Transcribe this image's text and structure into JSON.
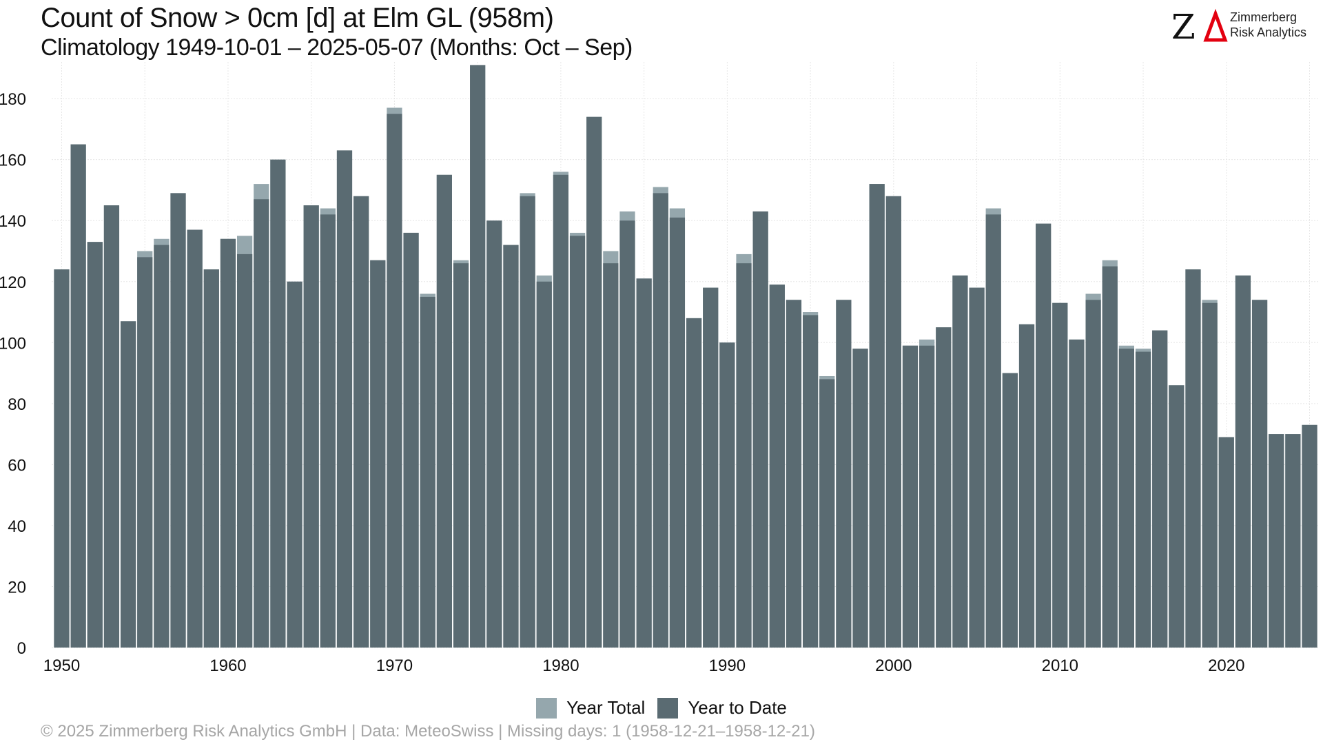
{
  "header": {
    "title": "Count of Snow > 0cm [d] at Elm  GL (958m)",
    "subtitle": "Climatology 1949-10-01 – 2025-05-07 (Months: Oct – Sep)"
  },
  "logo": {
    "mark": "ZΔ",
    "line1": "Zimmerberg",
    "line2": "Risk Analytics",
    "accent_color": "#e3000f"
  },
  "legend": {
    "total_label": "Year Total",
    "ytd_label": "Year to Date"
  },
  "footer": "©  2025 Zimmerberg Risk Analytics GmbH | Data: MeteoSwiss | Missing days: 1 (1958-12-21–1958-12-21)",
  "colors": {
    "total": "#95a7ad",
    "ytd": "#5a6b72",
    "grid": "#e6e6e6"
  },
  "chart_data": {
    "type": "bar",
    "xlabel": "",
    "ylabel": "",
    "ylim": [
      0,
      192
    ],
    "yticks": [
      0,
      20,
      40,
      60,
      80,
      100,
      120,
      140,
      160,
      180
    ],
    "xticks": [
      1950,
      1960,
      1970,
      1980,
      1990,
      2000,
      2010,
      2020
    ],
    "grid": true,
    "legend_position": "bottom",
    "x": [
      1950,
      1951,
      1952,
      1953,
      1954,
      1955,
      1956,
      1957,
      1958,
      1959,
      1960,
      1961,
      1962,
      1963,
      1964,
      1965,
      1966,
      1967,
      1968,
      1969,
      1970,
      1971,
      1972,
      1973,
      1974,
      1975,
      1976,
      1977,
      1978,
      1979,
      1980,
      1981,
      1982,
      1983,
      1984,
      1985,
      1986,
      1987,
      1988,
      1989,
      1990,
      1991,
      1992,
      1993,
      1994,
      1995,
      1996,
      1997,
      1998,
      1999,
      2000,
      2001,
      2002,
      2003,
      2004,
      2005,
      2006,
      2007,
      2008,
      2009,
      2010,
      2011,
      2012,
      2013,
      2014,
      2015,
      2016,
      2017,
      2018,
      2019,
      2020,
      2021,
      2022,
      2023,
      2024,
      2025
    ],
    "series": [
      {
        "name": "Year Total",
        "values": [
          124,
          165,
          133,
          145,
          107,
          130,
          134,
          149,
          137,
          124,
          134,
          135,
          152,
          160,
          120,
          145,
          144,
          163,
          148,
          127,
          177,
          136,
          116,
          155,
          127,
          191,
          140,
          132,
          149,
          122,
          156,
          136,
          174,
          130,
          143,
          121,
          151,
          144,
          108,
          118,
          100,
          129,
          143,
          119,
          114,
          110,
          89,
          114,
          98,
          152,
          148,
          99,
          101,
          105,
          122,
          118,
          144,
          90,
          106,
          139,
          113,
          101,
          116,
          127,
          99,
          98,
          104,
          86,
          124,
          114,
          69,
          122,
          114,
          70,
          70,
          73
        ]
      },
      {
        "name": "Year to Date",
        "values": [
          124,
          165,
          133,
          145,
          107,
          128,
          132,
          149,
          137,
          124,
          134,
          129,
          147,
          160,
          120,
          145,
          142,
          163,
          148,
          127,
          175,
          136,
          115,
          155,
          126,
          191,
          140,
          132,
          148,
          120,
          155,
          135,
          174,
          126,
          140,
          121,
          149,
          141,
          108,
          118,
          100,
          126,
          143,
          119,
          114,
          109,
          88,
          114,
          98,
          152,
          148,
          99,
          99,
          105,
          122,
          118,
          142,
          90,
          106,
          139,
          113,
          101,
          114,
          125,
          98,
          97,
          104,
          86,
          124,
          113,
          69,
          122,
          114,
          70,
          70,
          73
        ]
      }
    ]
  }
}
